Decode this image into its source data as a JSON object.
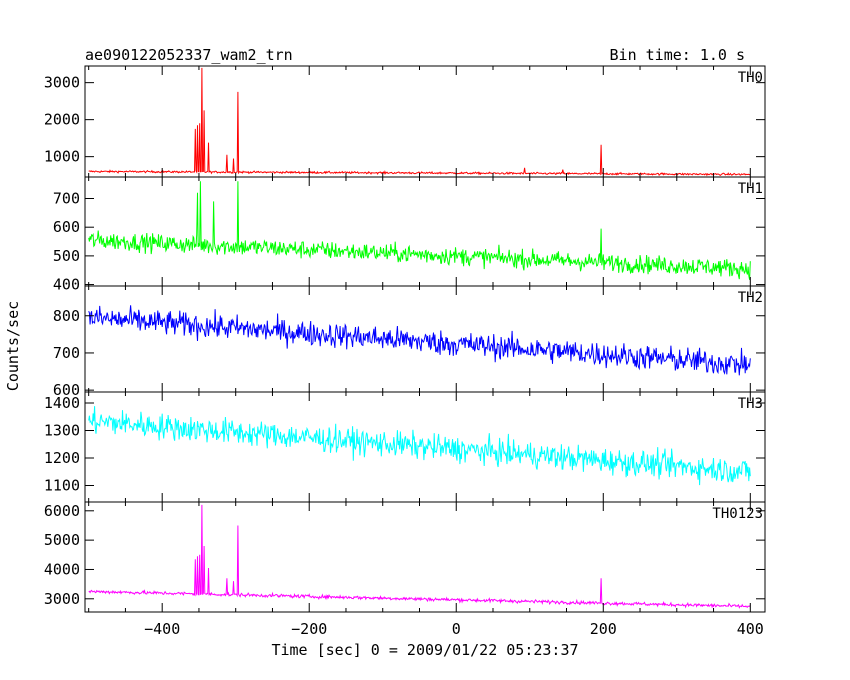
{
  "header": {
    "title": "ae090122052337_wam2_trn",
    "bin_time": "Bin time: 1.0 s"
  },
  "axes": {
    "xlabel": "Time [sec] 0 = 2009/01/22 05:23:37",
    "ylabel": "Counts/sec"
  },
  "chart_data": {
    "type": "line",
    "title": "ae090122052337_wam2_trn",
    "subtitle": "Bin time: 1.0 s",
    "xlabel": "Time [sec] 0 = 2009/01/22 05:23:37",
    "ylabel": "Counts/sec",
    "xlim": [
      -505,
      420
    ],
    "x_ticks": [
      -400,
      -200,
      0,
      200,
      400
    ],
    "x_tick_labels": [
      "−400",
      "−200",
      "0",
      "200",
      "400"
    ],
    "x_range_data": [
      -500,
      400
    ],
    "panels": [
      {
        "name": "TH0",
        "color": "#ff0000",
        "ylim": [
          450,
          3450
        ],
        "y_ticks": [
          1000,
          2000,
          3000
        ],
        "y_tick_labels": [
          "1000",
          "2000",
          "3000"
        ],
        "start": 600,
        "end": 520,
        "noise": 25,
        "spikes": [
          {
            "x": -355,
            "y": 1750
          },
          {
            "x": -352,
            "y": 1850
          },
          {
            "x": -349,
            "y": 1900
          },
          {
            "x": -346,
            "y": 3400
          },
          {
            "x": -343,
            "y": 2250
          },
          {
            "x": -337,
            "y": 1380
          },
          {
            "x": -312,
            "y": 1050
          },
          {
            "x": -303,
            "y": 950
          },
          {
            "x": -297,
            "y": 2750
          },
          {
            "x": 93,
            "y": 700
          },
          {
            "x": 145,
            "y": 650
          },
          {
            "x": 197,
            "y": 1320
          }
        ]
      },
      {
        "name": "TH1",
        "color": "#00ff00",
        "ylim": [
          395,
          775
        ],
        "y_ticks": [
          400,
          500,
          600,
          700
        ],
        "y_tick_labels": [
          "400",
          "500",
          "600",
          "700"
        ],
        "start": 555,
        "end": 455,
        "noise": 30,
        "spikes": [
          {
            "x": -352,
            "y": 720
          },
          {
            "x": -348,
            "y": 760
          },
          {
            "x": -330,
            "y": 690
          },
          {
            "x": -297,
            "y": 760
          },
          {
            "x": 197,
            "y": 595
          }
        ]
      },
      {
        "name": "TH2",
        "color": "#0000ff",
        "ylim": [
          595,
          880
        ],
        "y_ticks": [
          600,
          700,
          800
        ],
        "y_tick_labels": [
          "600",
          "700",
          "800"
        ],
        "start": 795,
        "end": 668,
        "noise": 32,
        "spikes": []
      },
      {
        "name": "TH3",
        "color": "#00ffff",
        "ylim": [
          1040,
          1440
        ],
        "y_ticks": [
          1100,
          1200,
          1300,
          1400
        ],
        "y_tick_labels": [
          "1100",
          "1200",
          "1300",
          "1400"
        ],
        "start": 1335,
        "end": 1150,
        "noise": 45,
        "spikes": []
      },
      {
        "name": "TH0123",
        "color": "#ff00ff",
        "ylim": [
          2550,
          6300
        ],
        "y_ticks": [
          3000,
          4000,
          5000,
          6000
        ],
        "y_tick_labels": [
          "3000",
          "4000",
          "5000",
          "6000"
        ],
        "start": 3250,
        "end": 2740,
        "noise": 55,
        "spikes": [
          {
            "x": -355,
            "y": 4350
          },
          {
            "x": -352,
            "y": 4450
          },
          {
            "x": -349,
            "y": 4500
          },
          {
            "x": -346,
            "y": 6200
          },
          {
            "x": -343,
            "y": 4800
          },
          {
            "x": -337,
            "y": 4050
          },
          {
            "x": -312,
            "y": 3700
          },
          {
            "x": -303,
            "y": 3600
          },
          {
            "x": -297,
            "y": 5500
          },
          {
            "x": 197,
            "y": 3700
          }
        ]
      }
    ]
  }
}
